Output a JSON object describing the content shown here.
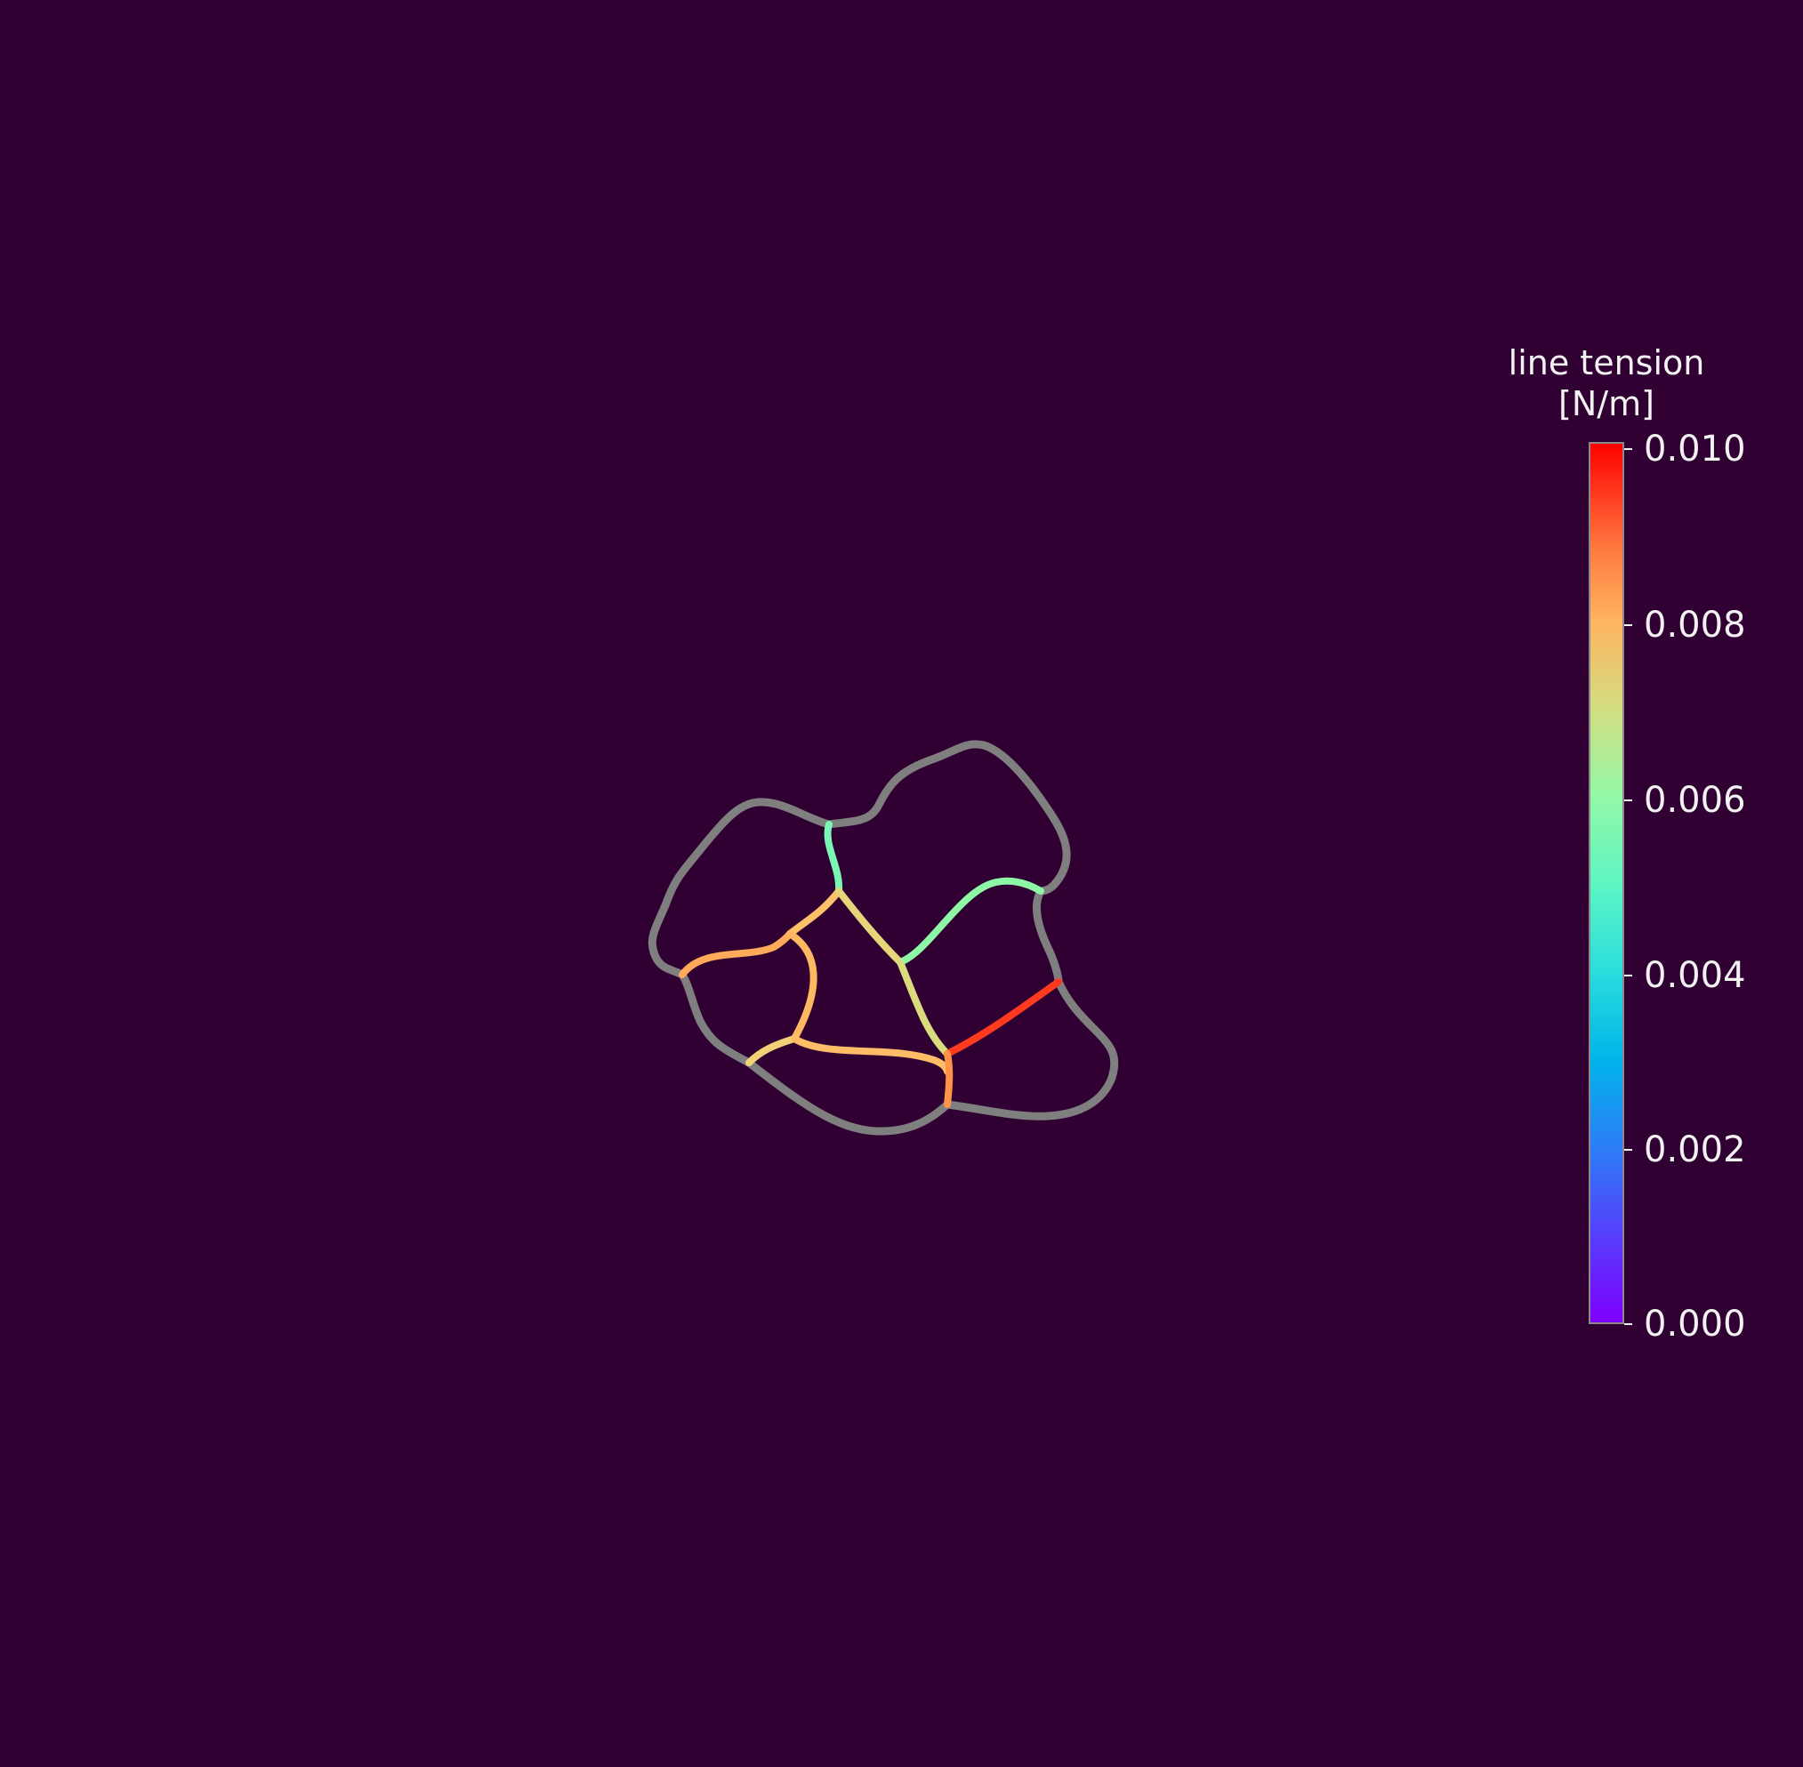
{
  "colorbar": {
    "title_line1": "line tension",
    "title_line2": "[N/m]",
    "min": 0.0,
    "max": 0.01,
    "ticks": [
      "0.010",
      "0.008",
      "0.006",
      "0.004",
      "0.002",
      "0.000"
    ],
    "colormap": "rainbow"
  },
  "colors": {
    "background": "#300033",
    "boundary_edge": "#7f7f7f",
    "text": "#f2f2f2"
  },
  "network": {
    "boundary_edges": 13,
    "internal_edges": 15,
    "boundary_color_meaning": "no tension value (gray)"
  }
}
